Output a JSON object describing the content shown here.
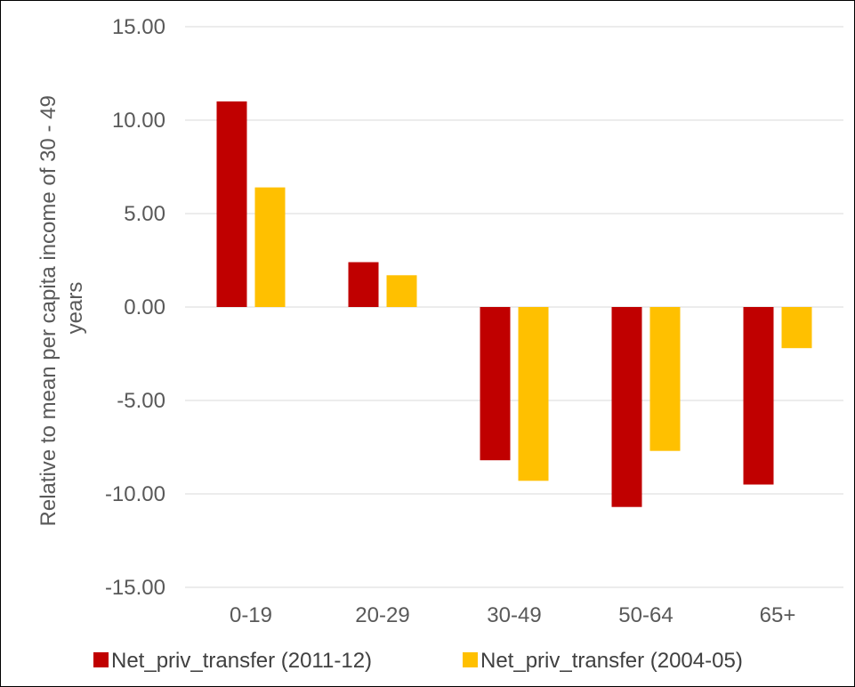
{
  "chart_data": {
    "type": "bar",
    "title": "",
    "xlabel": "",
    "ylabel": "Relative to mean per capita income of 30 - 49 years",
    "ylabel_lines": [
      "Relative to mean per capita income of 30 - 49",
      "years"
    ],
    "ylim": [
      -15,
      15
    ],
    "yticks": [
      15,
      10,
      5,
      0,
      -5,
      -10,
      -15
    ],
    "ytick_labels": [
      "15.00",
      "10.00",
      "5.00",
      "0.00",
      "-5.00",
      "-10.00",
      "-15.00"
    ],
    "grid": true,
    "legend_position": "bottom",
    "categories": [
      "0-19",
      "20-29",
      "30-49",
      "50-64",
      "65+"
    ],
    "series": [
      {
        "name": "Net_priv_transfer (2011-12)",
        "color": "#C00000",
        "values": [
          11.0,
          2.4,
          -8.2,
          -10.7,
          -9.5
        ]
      },
      {
        "name": "Net_priv_transfer (2004-05)",
        "color": "#FFC000",
        "values": [
          6.4,
          1.7,
          -9.3,
          -7.7,
          -2.2
        ]
      }
    ]
  }
}
